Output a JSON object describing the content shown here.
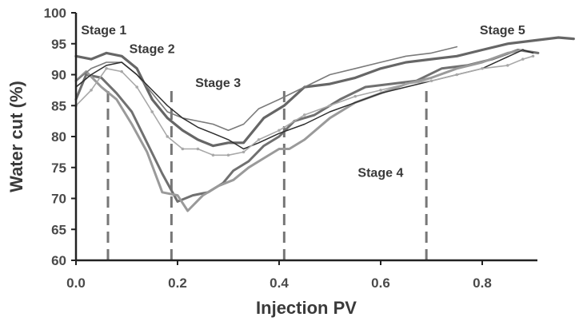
{
  "chart_data": {
    "type": "line",
    "title": "",
    "xlabel": "Injection PV",
    "ylabel": "Water cut (%)",
    "xlim": [
      0,
      1.0
    ],
    "ylim": [
      60,
      100
    ],
    "xticks": [
      0.0,
      0.2,
      0.4,
      0.6,
      0.8
    ],
    "xtick_labels": [
      "0.0",
      "0.2",
      "0.4",
      "0.6",
      "0.8"
    ],
    "yticks": [
      60,
      65,
      70,
      75,
      80,
      85,
      90,
      95,
      100
    ],
    "ytick_labels": [
      "60",
      "65",
      "70",
      "75",
      "80",
      "85",
      "90",
      "95",
      "100"
    ],
    "grid": false,
    "legend": "none",
    "annotations": [
      {
        "text": "Stage 1",
        "x": 0.01,
        "y": 96.5
      },
      {
        "text": "Stage 2",
        "x": 0.105,
        "y": 93.5
      },
      {
        "text": "Stage 3",
        "x": 0.235,
        "y": 88.0
      },
      {
        "text": "Stage 4",
        "x": 0.555,
        "y": 73.5
      },
      {
        "text": "Stage 5",
        "x": 0.795,
        "y": 96.5
      }
    ],
    "stage_boundaries": [
      0.063,
      0.188,
      0.41,
      0.69
    ],
    "series": [
      {
        "color": "#666666",
        "width": 3.2,
        "x": [
          0.0,
          0.03,
          0.06,
          0.09,
          0.12,
          0.15,
          0.18,
          0.21,
          0.24,
          0.27,
          0.3,
          0.33,
          0.37,
          0.41,
          0.45,
          0.5,
          0.55,
          0.6,
          0.65,
          0.7,
          0.75,
          0.8,
          0.85,
          0.9,
          0.95,
          0.98
        ],
        "y": [
          93.0,
          92.5,
          93.5,
          93.0,
          91.0,
          86.0,
          83.0,
          81.0,
          79.5,
          78.5,
          79.0,
          79.0,
          83.0,
          85.0,
          88.0,
          88.5,
          89.5,
          91.0,
          92.0,
          92.5,
          93.0,
          94.0,
          95.0,
          95.5,
          96.0,
          95.8
        ]
      },
      {
        "color": "#707070",
        "width": 3.0,
        "x": [
          0.0,
          0.02,
          0.05,
          0.08,
          0.11,
          0.14,
          0.17,
          0.2,
          0.23,
          0.26,
          0.29,
          0.31,
          0.34,
          0.37,
          0.4,
          0.43,
          0.47,
          0.52,
          0.57,
          0.62,
          0.67,
          0.72,
          0.77,
          0.82,
          0.87,
          0.91
        ],
        "y": [
          86.0,
          90.0,
          89.5,
          87.0,
          84.0,
          79.0,
          74.0,
          69.5,
          70.5,
          71.0,
          72.5,
          74.5,
          76.0,
          78.5,
          80.0,
          82.5,
          83.5,
          86.0,
          88.0,
          88.5,
          89.0,
          91.0,
          91.5,
          92.5,
          94.0,
          93.5
        ]
      },
      {
        "color": "#9a9a9a",
        "width": 3.0,
        "x": [
          0.0,
          0.02,
          0.05,
          0.08,
          0.11,
          0.14,
          0.17,
          0.2,
          0.22,
          0.25,
          0.28,
          0.31,
          0.34,
          0.37,
          0.4,
          0.42,
          0.45,
          0.5,
          0.55,
          0.6,
          0.65,
          0.7,
          0.75,
          0.8,
          0.85,
          0.88
        ],
        "y": [
          89.0,
          90.5,
          88.0,
          86.0,
          82.0,
          77.5,
          71.0,
          70.5,
          68.0,
          70.5,
          72.0,
          73.0,
          75.0,
          76.5,
          78.0,
          78.0,
          79.5,
          83.0,
          85.5,
          87.0,
          88.5,
          89.5,
          91.0,
          92.0,
          93.5,
          94.0
        ]
      },
      {
        "color": "#7a7a7a",
        "width": 1.6,
        "x": [
          0.0,
          0.03,
          0.06,
          0.09,
          0.12,
          0.15,
          0.18,
          0.21,
          0.24,
          0.27,
          0.3,
          0.33,
          0.36,
          0.4,
          0.45,
          0.5,
          0.55,
          0.6,
          0.65,
          0.7,
          0.75
        ],
        "y": [
          89.0,
          91.0,
          92.0,
          92.0,
          90.0,
          87.0,
          84.0,
          83.0,
          82.5,
          82.0,
          81.0,
          82.0,
          84.5,
          86.0,
          88.0,
          90.0,
          91.0,
          92.0,
          93.0,
          93.5,
          94.5
        ]
      },
      {
        "color": "#2e2e2e",
        "width": 1.5,
        "x": [
          0.0,
          0.03,
          0.06,
          0.09,
          0.12,
          0.15,
          0.18,
          0.21,
          0.24,
          0.27,
          0.3,
          0.33,
          0.36,
          0.4,
          0.45,
          0.5,
          0.55,
          0.6,
          0.65,
          0.7,
          0.75,
          0.8,
          0.84,
          0.88,
          0.9
        ],
        "y": [
          88.0,
          90.0,
          91.5,
          92.0,
          90.0,
          87.5,
          85.0,
          83.0,
          81.5,
          80.5,
          79.5,
          78.0,
          79.0,
          80.5,
          82.0,
          84.0,
          85.5,
          87.0,
          88.0,
          89.0,
          90.0,
          91.0,
          92.5,
          94.0,
          93.5
        ]
      },
      {
        "color": "#a8a8a8",
        "width": 1.6,
        "marker": true,
        "x": [
          0.0,
          0.03,
          0.06,
          0.09,
          0.12,
          0.15,
          0.18,
          0.21,
          0.24,
          0.27,
          0.3,
          0.33,
          0.36,
          0.4,
          0.45,
          0.5,
          0.55,
          0.6,
          0.65,
          0.7,
          0.75,
          0.8,
          0.85,
          0.88,
          0.9
        ],
        "y": [
          85.0,
          87.5,
          91.0,
          90.5,
          88.0,
          84.0,
          80.0,
          78.0,
          78.0,
          77.0,
          77.0,
          77.5,
          79.5,
          81.0,
          83.5,
          85.0,
          86.5,
          87.5,
          88.5,
          89.0,
          90.0,
          91.0,
          91.5,
          92.5,
          93.0
        ]
      }
    ]
  }
}
